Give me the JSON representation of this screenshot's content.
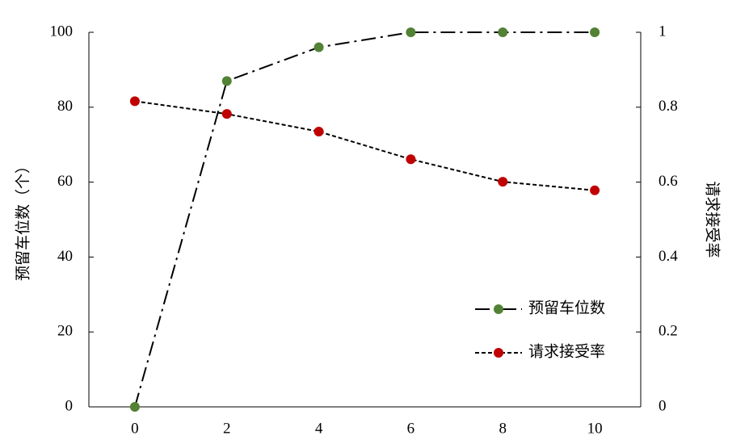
{
  "chart_data": {
    "type": "line",
    "y_label": "预留车位数（个）",
    "y2_label": "请求接受率",
    "x": [
      0,
      2,
      4,
      6,
      8,
      10
    ],
    "xlim": [
      -1,
      11
    ],
    "xticks": [
      0,
      2,
      4,
      6,
      8,
      10
    ],
    "ylim": [
      0,
      100
    ],
    "yticks": [
      0,
      20,
      40,
      60,
      80,
      100
    ],
    "y2lim": [
      0,
      1
    ],
    "y2ticks": [
      0,
      0.2,
      0.4,
      0.6,
      0.8,
      1
    ],
    "legend": "lower right",
    "series": [
      {
        "name": "预留车位数",
        "color": "#538135",
        "dash": "18 6 3 6",
        "values": [
          0,
          87,
          96,
          100,
          100,
          100
        ]
      },
      {
        "name": "请求接受率",
        "color": "#c00000",
        "dash": "5 3",
        "axis": "y2",
        "values": [
          0.816,
          0.782,
          0.735,
          0.661,
          0.601,
          0.578
        ]
      }
    ]
  }
}
